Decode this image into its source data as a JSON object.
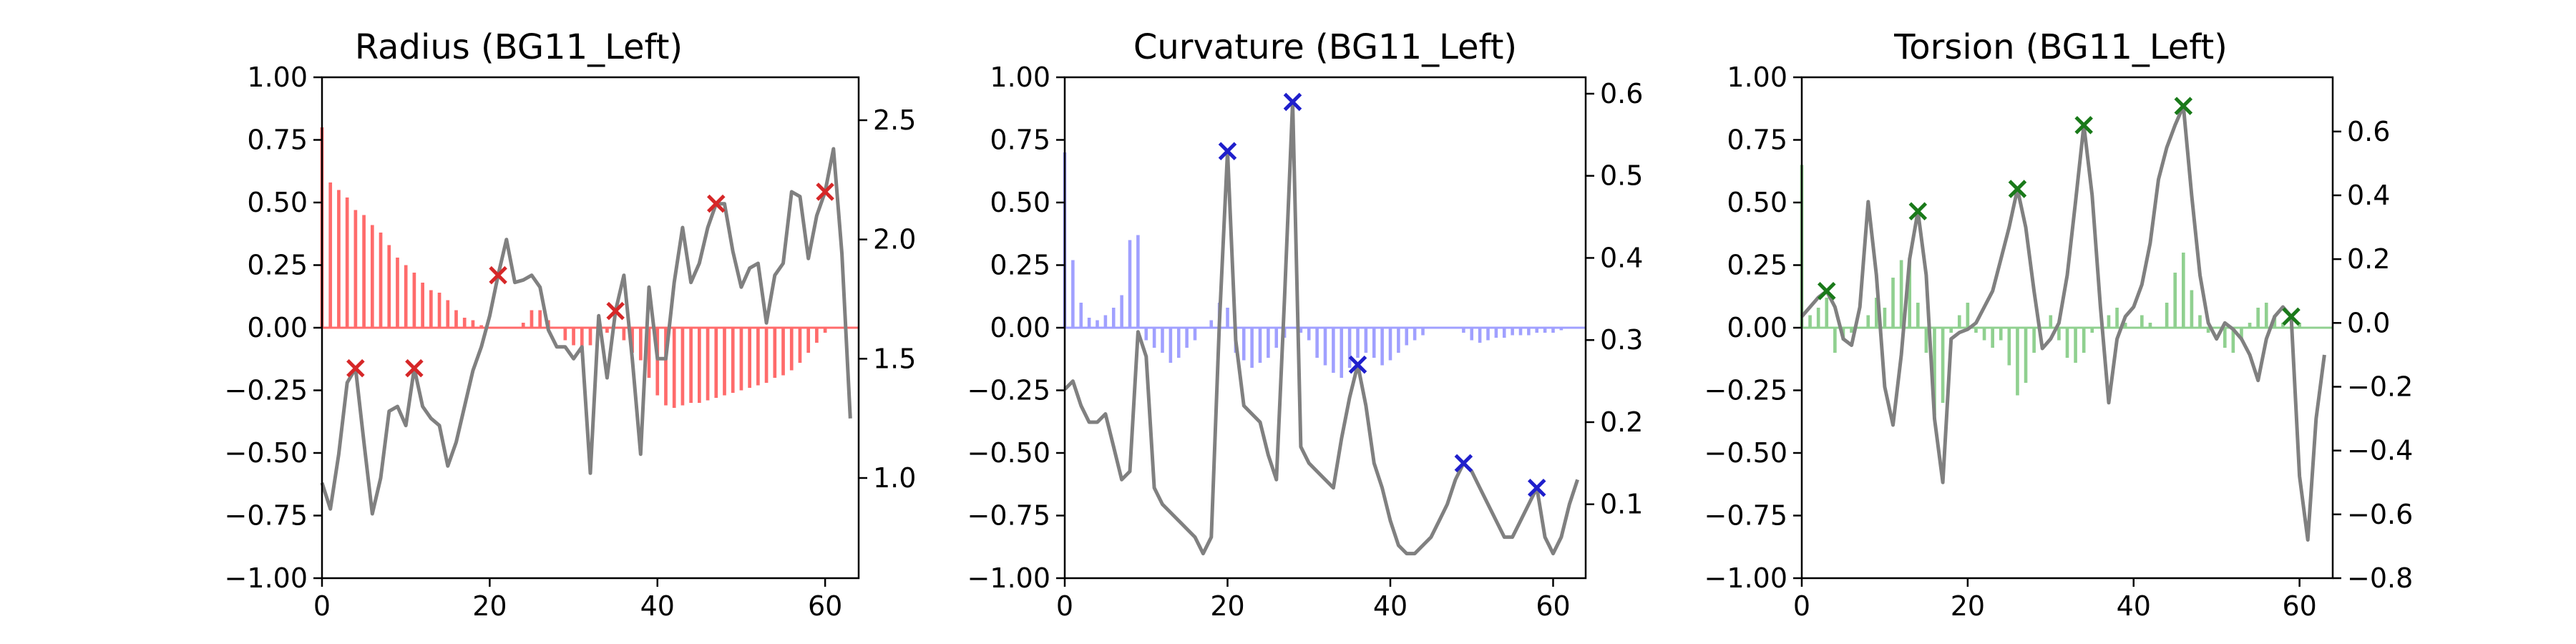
{
  "chart_data": [
    {
      "type": "bar",
      "title": "Radius (BG11_Left)",
      "xlabel": "",
      "ylabel": "",
      "xlim": [
        0,
        64
      ],
      "ylim": [
        -1.0,
        1.0
      ],
      "y2lim": [
        0.58,
        2.68
      ],
      "x_ticks": [
        "0",
        "20",
        "40",
        "60"
      ],
      "y_ticks": [
        "-1.00",
        "-0.75",
        "-0.50",
        "-0.25",
        "0.00",
        "0.25",
        "0.50",
        "0.75",
        "1.00"
      ],
      "y2_ticks": [
        "1.0",
        "1.5",
        "2.0",
        "2.5"
      ],
      "bar_color": "#ff6b6b",
      "line_color": "#808080",
      "marker_color": "#d62728",
      "bars": [
        0.8,
        0.58,
        0.55,
        0.52,
        0.47,
        0.45,
        0.41,
        0.38,
        0.33,
        0.28,
        0.25,
        0.22,
        0.18,
        0.15,
        0.14,
        0.11,
        0.07,
        0.04,
        0.03,
        0.01,
        0.0,
        0.0,
        0.0,
        0.0,
        0.02,
        0.07,
        0.07,
        0.03,
        0.0,
        -0.05,
        -0.07,
        -0.1,
        -0.07,
        -0.03,
        -0.02,
        0.0,
        -0.05,
        -0.1,
        -0.13,
        -0.2,
        -0.27,
        -0.31,
        -0.32,
        -0.31,
        -0.3,
        -0.3,
        -0.29,
        -0.28,
        -0.27,
        -0.26,
        -0.25,
        -0.24,
        -0.23,
        -0.22,
        -0.2,
        -0.19,
        -0.17,
        -0.14,
        -0.1,
        -0.06,
        -0.02,
        0.0,
        0.0
      ],
      "line": [
        0.98,
        0.87,
        1.1,
        1.4,
        1.46,
        1.15,
        0.85,
        1.0,
        1.28,
        1.3,
        1.22,
        1.46,
        1.3,
        1.25,
        1.22,
        1.05,
        1.15,
        1.3,
        1.45,
        1.55,
        1.68,
        1.85,
        2.0,
        1.82,
        1.83,
        1.85,
        1.8,
        1.62,
        1.55,
        1.55,
        1.5,
        1.55,
        1.02,
        1.68,
        1.42,
        1.7,
        1.85,
        1.5,
        1.1,
        1.8,
        1.5,
        1.5,
        1.82,
        2.05,
        1.82,
        1.9,
        2.05,
        2.15,
        2.15,
        1.95,
        1.8,
        1.88,
        1.9,
        1.65,
        1.85,
        1.9,
        2.2,
        2.18,
        1.92,
        2.1,
        2.2,
        2.38,
        1.94,
        1.25
      ],
      "peak_x": [
        4,
        11,
        21,
        35,
        47,
        60
      ]
    },
    {
      "type": "bar",
      "title": "Curvature (BG11_Left)",
      "xlabel": "",
      "ylabel": "",
      "xlim": [
        0,
        64
      ],
      "ylim": [
        -1.0,
        1.0
      ],
      "y2lim": [
        0.01,
        0.62
      ],
      "x_ticks": [
        "0",
        "20",
        "40",
        "60"
      ],
      "y_ticks": [
        "-1.00",
        "-0.75",
        "-0.50",
        "-0.25",
        "0.00",
        "0.25",
        "0.50",
        "0.75",
        "1.00"
      ],
      "y2_ticks": [
        "0.1",
        "0.2",
        "0.3",
        "0.4",
        "0.5",
        "0.6"
      ],
      "bar_color": "#a0a0ff",
      "line_color": "#808080",
      "marker_color": "#1f1fcc",
      "bars": [
        0.7,
        0.27,
        0.1,
        0.04,
        0.03,
        0.05,
        0.08,
        0.13,
        0.35,
        0.37,
        -0.05,
        -0.08,
        -0.1,
        -0.14,
        -0.12,
        -0.08,
        -0.05,
        0.0,
        0.03,
        0.1,
        0.08,
        -0.1,
        -0.13,
        -0.16,
        -0.14,
        -0.12,
        -0.08,
        -0.04,
        0.0,
        -0.02,
        -0.05,
        -0.12,
        -0.15,
        -0.18,
        -0.2,
        -0.16,
        -0.12,
        -0.1,
        -0.12,
        -0.15,
        -0.13,
        -0.1,
        -0.07,
        -0.05,
        -0.03,
        0.0,
        0.0,
        0.0,
        0.0,
        -0.02,
        -0.05,
        -0.06,
        -0.05,
        -0.04,
        -0.04,
        -0.03,
        -0.03,
        -0.03,
        -0.02,
        -0.02,
        -0.02,
        -0.01,
        0.0
      ],
      "line": [
        0.24,
        0.25,
        0.22,
        0.2,
        0.2,
        0.21,
        0.17,
        0.13,
        0.14,
        0.31,
        0.28,
        0.12,
        0.1,
        0.09,
        0.08,
        0.07,
        0.06,
        0.04,
        0.06,
        0.32,
        0.53,
        0.3,
        0.22,
        0.21,
        0.2,
        0.16,
        0.13,
        0.35,
        0.59,
        0.17,
        0.15,
        0.14,
        0.13,
        0.12,
        0.18,
        0.23,
        0.27,
        0.22,
        0.15,
        0.12,
        0.08,
        0.05,
        0.04,
        0.04,
        0.05,
        0.06,
        0.08,
        0.1,
        0.13,
        0.15,
        0.14,
        0.12,
        0.1,
        0.08,
        0.06,
        0.06,
        0.08,
        0.1,
        0.12,
        0.06,
        0.04,
        0.06,
        0.1,
        0.13
      ],
      "peak_x": [
        20,
        28,
        36,
        49,
        58
      ]
    },
    {
      "type": "bar",
      "title": "Torsion (BG11_Left)",
      "xlabel": "",
      "ylabel": "",
      "xlim": [
        0,
        64
      ],
      "ylim": [
        -1.0,
        1.0
      ],
      "y2lim": [
        -0.8,
        0.77
      ],
      "x_ticks": [
        "0",
        "20",
        "40",
        "60"
      ],
      "y_ticks": [
        "-1.00",
        "-0.75",
        "-0.50",
        "-0.25",
        "0.00",
        "0.25",
        "0.50",
        "0.75",
        "1.00"
      ],
      "y2_ticks": [
        "-0.8",
        "-0.6",
        "-0.4",
        "-0.2",
        "0.0",
        "0.2",
        "0.4",
        "0.6"
      ],
      "bar_color": "#90d090",
      "line_color": "#808080",
      "marker_color": "#1a7a1a",
      "bars": [
        0.65,
        0.05,
        0.08,
        0.12,
        -0.1,
        -0.05,
        -0.02,
        0.0,
        0.05,
        0.12,
        0.08,
        0.2,
        0.27,
        0.28,
        0.1,
        -0.1,
        -0.35,
        -0.3,
        -0.02,
        0.05,
        0.1,
        -0.02,
        -0.05,
        -0.08,
        -0.05,
        -0.15,
        -0.27,
        -0.22,
        -0.1,
        0.0,
        0.05,
        -0.05,
        -0.12,
        -0.14,
        -0.1,
        -0.02,
        0.0,
        0.05,
        0.08,
        0.02,
        0.0,
        0.05,
        0.02,
        0.0,
        0.1,
        0.22,
        0.3,
        0.15,
        0.05,
        -0.02,
        0.0,
        -0.08,
        -0.1,
        -0.05,
        0.02,
        0.08,
        0.1,
        0.05,
        0.02,
        0.0,
        0.02,
        0.0,
        0.0
      ],
      "line": [
        0.02,
        0.05,
        0.08,
        0.1,
        0.05,
        -0.05,
        -0.07,
        0.05,
        0.38,
        0.15,
        -0.2,
        -0.32,
        -0.1,
        0.2,
        0.35,
        0.15,
        -0.3,
        -0.5,
        -0.05,
        -0.03,
        -0.02,
        0.0,
        0.05,
        0.1,
        0.2,
        0.3,
        0.42,
        0.3,
        0.1,
        -0.08,
        -0.05,
        0.0,
        0.15,
        0.38,
        0.62,
        0.4,
        0.05,
        -0.25,
        -0.05,
        0.02,
        0.05,
        0.12,
        0.25,
        0.45,
        0.55,
        0.62,
        0.68,
        0.4,
        0.15,
        0.0,
        -0.05,
        0.0,
        -0.02,
        -0.05,
        -0.1,
        -0.18,
        -0.05,
        0.02,
        0.05,
        0.02,
        -0.48,
        -0.68,
        -0.3,
        -0.1
      ],
      "peak_x": [
        3,
        14,
        26,
        34,
        46,
        59
      ]
    }
  ]
}
